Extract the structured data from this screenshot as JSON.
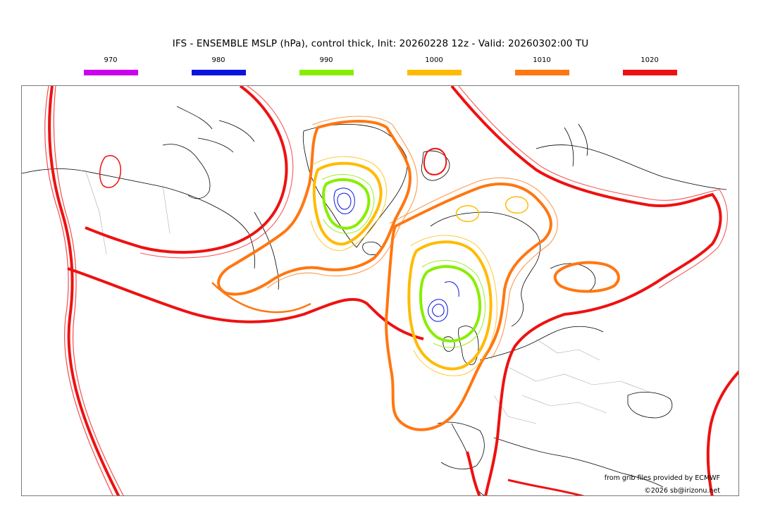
{
  "title": "IFS - ENSEMBLE MSLP (hPa), control thick, Init: 20260228 12z - Valid: 20260302:00 TU",
  "legend": [
    {
      "label": "970",
      "color": "#cc00ee"
    },
    {
      "label": "980",
      "color": "#0a14dd"
    },
    {
      "label": "990",
      "color": "#88ee00"
    },
    {
      "label": "1000",
      "color": "#ffbb00"
    },
    {
      "label": "1010",
      "color": "#ff7711"
    },
    {
      "label": "1020",
      "color": "#ee1111"
    }
  ],
  "credits": {
    "source": "from grib files provided by ECMWF",
    "copyright": "©2026 sb@irizonu.net"
  },
  "map": {
    "colors": {
      "coast": "#000000",
      "border": "#aaaaaa"
    }
  }
}
